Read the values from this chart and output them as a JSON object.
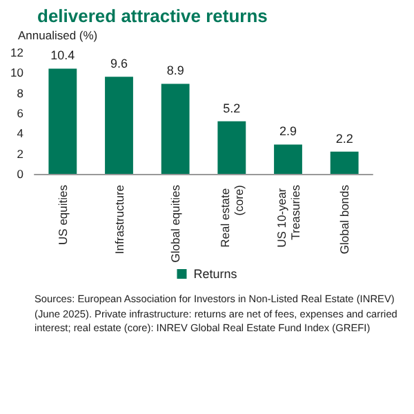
{
  "chart_data": {
    "type": "bar",
    "title": "delivered attractive returns",
    "ylabel": "Annualised (%)",
    "categories": [
      "US equities",
      "Infrastructure",
      "Global equities",
      "Real estate (core)",
      "US 10-year Treasuries",
      "Global bonds"
    ],
    "series": [
      {
        "name": "Returns",
        "color": "#00785a",
        "values": [
          10.4,
          9.6,
          8.9,
          5.2,
          2.9,
          2.2
        ]
      }
    ],
    "ylim": [
      0,
      12
    ],
    "yticks": [
      0,
      2,
      4,
      6,
      8,
      10,
      12
    ],
    "grid": false,
    "legend": "bottom",
    "data_labels": true,
    "annotations": [
      "Sources: European Association for Investors in Non-Listed Real Estate (INREV) (June 2025). Private infrastructure: returns are net of fees, expenses and carried interest; real estate (core): INREV Global Real Estate Fund Index (GREFI)"
    ]
  }
}
